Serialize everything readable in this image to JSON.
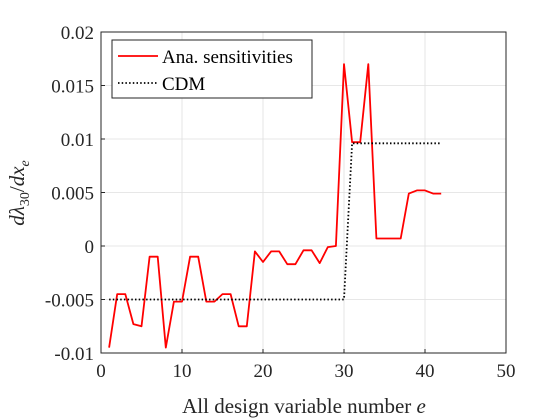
{
  "chart_data": {
    "type": "line",
    "xlabel_prefix": "All design variable number ",
    "xlabel_var": "e",
    "ylabel": "dλ30/dxe",
    "xlim": [
      0,
      50
    ],
    "ylim": [
      -0.01,
      0.02
    ],
    "xticks": [
      "0",
      "10",
      "20",
      "30",
      "40",
      "50"
    ],
    "yticks": [
      "-0.01",
      "-0.005",
      "0",
      "0.005",
      "0.01",
      "0.015",
      "0.02"
    ],
    "grid": true,
    "legend_position": "top-left",
    "series": [
      {
        "name": "Ana. sensitivities",
        "color": "#ff0000",
        "style": "solid",
        "x": [
          1,
          2,
          3,
          4,
          5,
          6,
          7,
          8,
          9,
          10,
          11,
          12,
          13,
          14,
          15,
          16,
          17,
          18,
          19,
          20,
          21,
          22,
          23,
          24,
          25,
          26,
          27,
          28,
          29,
          30,
          31,
          32,
          33,
          34,
          35,
          36,
          37,
          38,
          39,
          40,
          41,
          42
        ],
        "y": [
          -0.0095,
          -0.0045,
          -0.0045,
          -0.0073,
          -0.0075,
          -0.001,
          -0.001,
          -0.0095,
          -0.0052,
          -0.0052,
          -0.001,
          -0.001,
          -0.0052,
          -0.0052,
          -0.0045,
          -0.0045,
          -0.0075,
          -0.0075,
          -0.0005,
          -0.0015,
          -0.0005,
          -0.0005,
          -0.0017,
          -0.0017,
          -0.0004,
          -0.0004,
          -0.0016,
          -0.0001,
          0,
          0.017,
          0.0097,
          0.0097,
          0.017,
          0.0007,
          0.0007,
          0.0007,
          0.0007,
          0.0049,
          0.0052,
          0.0052,
          0.0049,
          0.0049
        ]
      },
      {
        "name": "CDM",
        "color": "#000000",
        "style": "dotted",
        "x": [
          1,
          30,
          31,
          42
        ],
        "y": [
          -0.005,
          -0.005,
          0.0096,
          0.0096
        ]
      }
    ]
  }
}
